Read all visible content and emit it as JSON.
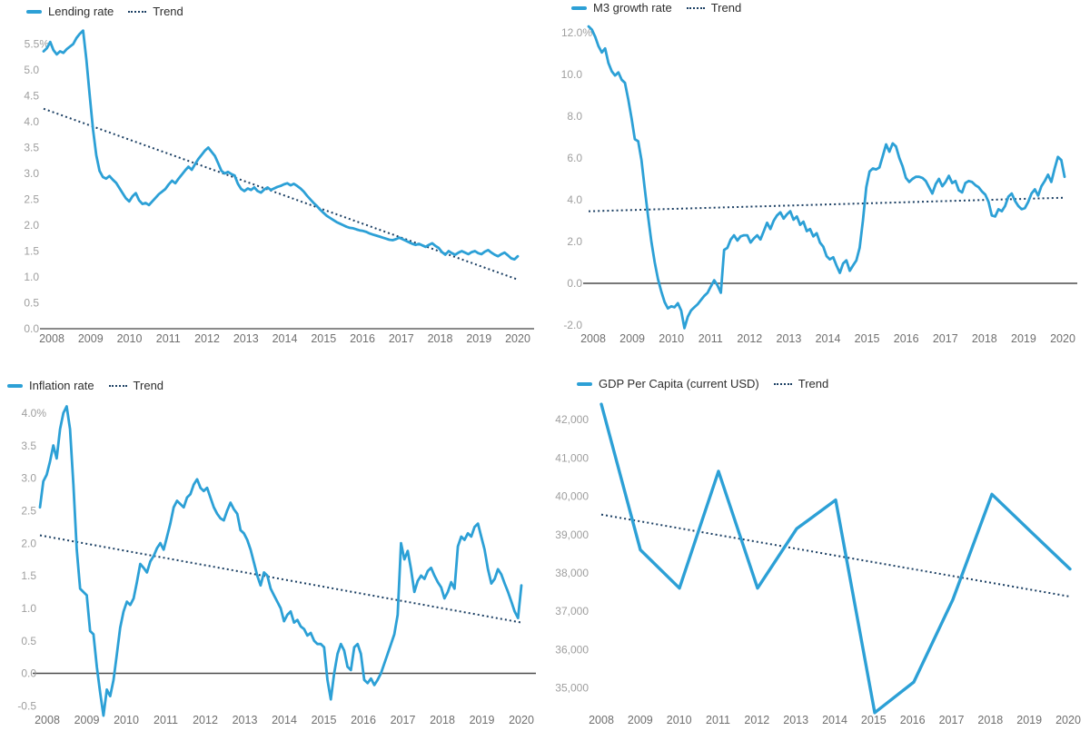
{
  "colors": {
    "series": "#2CA0D6",
    "trend": "#1B3F63",
    "axis_light": "#8a8a8a",
    "axis_dark": "#4c4c4c",
    "y_tick_label": "#9e9e9e",
    "x_tick_label": "#6f6f6f",
    "legend_text": "#2d2d2d",
    "background": "#ffffff"
  },
  "chart_data": [
    {
      "id": "lending-rate",
      "type": "line",
      "legend": {
        "series": "Lending rate",
        "trend": "Trend"
      },
      "ylabel": "",
      "xlabel": "",
      "ylim": [
        0.0,
        5.9
      ],
      "grid": false,
      "legend_position": "top-left",
      "y_ticks": [
        {
          "v": 5.5,
          "t": "5.5%"
        },
        {
          "v": 5.0,
          "t": "5.0"
        },
        {
          "v": 4.5,
          "t": "4.5"
        },
        {
          "v": 4.0,
          "t": "4.0"
        },
        {
          "v": 3.5,
          "t": "3.5"
        },
        {
          "v": 3.0,
          "t": "3.0"
        },
        {
          "v": 2.5,
          "t": "2.5"
        },
        {
          "v": 2.0,
          "t": "2.0"
        },
        {
          "v": 1.5,
          "t": "1.5"
        },
        {
          "v": 1.0,
          "t": "1.0"
        },
        {
          "v": 0.5,
          "t": "0.5"
        },
        {
          "v": 0.0,
          "t": "0.0"
        }
      ],
      "x_ticks": [
        "2008",
        "2009",
        "2010",
        "2011",
        "2012",
        "2013",
        "2014",
        "2015",
        "2016",
        "2017",
        "2018",
        "2019",
        "2020"
      ],
      "baseline": {
        "value": 0.0,
        "style": "light"
      },
      "trend": {
        "start": 4.25,
        "end": 0.95
      },
      "series": {
        "name": "Lending rate",
        "unit": "%",
        "start_year": 2008,
        "interval_months": 1,
        "values": [
          5.36,
          5.42,
          5.54,
          5.38,
          5.3,
          5.36,
          5.33,
          5.4,
          5.45,
          5.5,
          5.62,
          5.7,
          5.76,
          5.2,
          4.5,
          3.85,
          3.35,
          3.05,
          2.93,
          2.9,
          2.95,
          2.88,
          2.82,
          2.72,
          2.62,
          2.52,
          2.46,
          2.56,
          2.62,
          2.48,
          2.41,
          2.43,
          2.39,
          2.46,
          2.53,
          2.6,
          2.65,
          2.7,
          2.79,
          2.86,
          2.81,
          2.9,
          2.98,
          3.06,
          3.13,
          3.07,
          3.18,
          3.28,
          3.36,
          3.44,
          3.5,
          3.42,
          3.34,
          3.2,
          3.05,
          3.0,
          3.03,
          2.99,
          2.96,
          2.8,
          2.7,
          2.66,
          2.71,
          2.68,
          2.73,
          2.66,
          2.63,
          2.69,
          2.73,
          2.68,
          2.71,
          2.74,
          2.76,
          2.79,
          2.81,
          2.77,
          2.8,
          2.76,
          2.71,
          2.65,
          2.57,
          2.5,
          2.43,
          2.37,
          2.3,
          2.24,
          2.18,
          2.14,
          2.1,
          2.06,
          2.03,
          2.0,
          1.97,
          1.95,
          1.94,
          1.92,
          1.9,
          1.89,
          1.87,
          1.84,
          1.82,
          1.8,
          1.78,
          1.76,
          1.74,
          1.72,
          1.71,
          1.73,
          1.76,
          1.73,
          1.7,
          1.67,
          1.64,
          1.62,
          1.64,
          1.61,
          1.58,
          1.62,
          1.65,
          1.6,
          1.56,
          1.48,
          1.43,
          1.5,
          1.46,
          1.43,
          1.47,
          1.5,
          1.47,
          1.44,
          1.48,
          1.5,
          1.46,
          1.44,
          1.49,
          1.52,
          1.47,
          1.43,
          1.4,
          1.44,
          1.47,
          1.42,
          1.36,
          1.34,
          1.4
        ]
      }
    },
    {
      "id": "m3-growth-rate",
      "type": "line",
      "legend": {
        "series": "M3 growth rate",
        "trend": "Trend"
      },
      "ylabel": "",
      "xlabel": "",
      "ylim": [
        -2.4,
        12.6
      ],
      "grid": false,
      "legend_position": "top-left",
      "y_ticks": [
        {
          "v": 12.0,
          "t": "12.0%"
        },
        {
          "v": 10.0,
          "t": "10.0"
        },
        {
          "v": 8.0,
          "t": "8.0"
        },
        {
          "v": 6.0,
          "t": "6.0"
        },
        {
          "v": 4.0,
          "t": "4.0"
        },
        {
          "v": 2.0,
          "t": "2.0"
        },
        {
          "v": 0.0,
          "t": "0.0"
        },
        {
          "v": -2.0,
          "t": "-2.0"
        }
      ],
      "x_ticks": [
        "2008",
        "2009",
        "2010",
        "2011",
        "2012",
        "2013",
        "2014",
        "2015",
        "2016",
        "2017",
        "2018",
        "2019",
        "2020"
      ],
      "baseline": {
        "value": 0.0,
        "style": "dark"
      },
      "trend": {
        "start": 3.45,
        "end": 4.1
      },
      "series": {
        "name": "M3 growth rate",
        "unit": "%",
        "start_year": 2008,
        "interval_months": 1,
        "values": [
          12.3,
          12.15,
          11.8,
          11.35,
          11.05,
          11.25,
          10.55,
          10.15,
          9.95,
          10.1,
          9.75,
          9.6,
          8.8,
          7.9,
          6.9,
          6.8,
          5.9,
          4.5,
          3.2,
          2.0,
          1.0,
          0.2,
          -0.4,
          -0.9,
          -1.2,
          -1.1,
          -1.15,
          -0.95,
          -1.3,
          -2.15,
          -1.6,
          -1.3,
          -1.15,
          -1.0,
          -0.8,
          -0.6,
          -0.45,
          -0.15,
          0.15,
          -0.1,
          -0.45,
          1.6,
          1.7,
          2.1,
          2.3,
          2.05,
          2.25,
          2.3,
          2.3,
          1.95,
          2.15,
          2.3,
          2.1,
          2.5,
          2.9,
          2.6,
          3.0,
          3.25,
          3.4,
          3.1,
          3.3,
          3.45,
          3.05,
          3.2,
          2.8,
          2.95,
          2.5,
          2.6,
          2.25,
          2.4,
          1.95,
          1.75,
          1.3,
          1.15,
          1.25,
          0.85,
          0.5,
          0.95,
          1.1,
          0.6,
          0.85,
          1.1,
          1.7,
          3.0,
          4.6,
          5.35,
          5.5,
          5.45,
          5.55,
          6.1,
          6.65,
          6.3,
          6.7,
          6.55,
          6.0,
          5.6,
          5.05,
          4.85,
          5.0,
          5.1,
          5.1,
          5.05,
          4.9,
          4.6,
          4.3,
          4.75,
          5.0,
          4.65,
          4.85,
          5.15,
          4.8,
          4.9,
          4.45,
          4.35,
          4.8,
          4.9,
          4.85,
          4.7,
          4.6,
          4.4,
          4.25,
          3.9,
          3.25,
          3.2,
          3.55,
          3.45,
          3.7,
          4.15,
          4.3,
          3.95,
          3.7,
          3.55,
          3.6,
          3.9,
          4.3,
          4.5,
          4.2,
          4.65,
          4.9,
          5.2,
          4.85,
          5.5,
          6.05,
          5.9,
          5.1
        ]
      }
    },
    {
      "id": "inflation-rate",
      "type": "line",
      "legend": {
        "series": "Inflation rate",
        "trend": "Trend"
      },
      "ylabel": "",
      "xlabel": "",
      "ylim": [
        -0.75,
        4.3
      ],
      "grid": false,
      "legend_position": "top-left",
      "y_ticks": [
        {
          "v": 4.0,
          "t": "4.0%"
        },
        {
          "v": 3.5,
          "t": "3.5"
        },
        {
          "v": 3.0,
          "t": "3.0"
        },
        {
          "v": 2.5,
          "t": "2.5"
        },
        {
          "v": 2.0,
          "t": "2.0"
        },
        {
          "v": 1.5,
          "t": "1.5"
        },
        {
          "v": 1.0,
          "t": "1.0"
        },
        {
          "v": 0.5,
          "t": "0.5"
        },
        {
          "v": 0.0,
          "t": "0.0"
        },
        {
          "v": -0.5,
          "t": "-0.5"
        }
      ],
      "x_ticks": [
        "2008",
        "2009",
        "2010",
        "2011",
        "2012",
        "2013",
        "2014",
        "2015",
        "2016",
        "2017",
        "2018",
        "2019",
        "2020"
      ],
      "baseline": {
        "value": 0.0,
        "style": "dark"
      },
      "trend": {
        "start": 2.12,
        "end": 0.78
      },
      "series": {
        "name": "Inflation rate",
        "unit": "%",
        "start_year": 2008,
        "interval_months": 1,
        "values": [
          2.55,
          2.95,
          3.05,
          3.25,
          3.5,
          3.3,
          3.75,
          4.0,
          4.1,
          3.75,
          2.9,
          1.9,
          1.3,
          1.25,
          1.2,
          0.65,
          0.6,
          0.1,
          -0.3,
          -0.65,
          -0.25,
          -0.35,
          -0.1,
          0.3,
          0.7,
          0.95,
          1.1,
          1.05,
          1.15,
          1.4,
          1.68,
          1.62,
          1.55,
          1.72,
          1.8,
          1.92,
          2.0,
          1.9,
          2.1,
          2.3,
          2.55,
          2.65,
          2.6,
          2.55,
          2.7,
          2.75,
          2.9,
          2.98,
          2.85,
          2.8,
          2.85,
          2.7,
          2.55,
          2.45,
          2.38,
          2.35,
          2.5,
          2.62,
          2.52,
          2.45,
          2.2,
          2.15,
          2.05,
          1.9,
          1.7,
          1.5,
          1.35,
          1.55,
          1.5,
          1.3,
          1.2,
          1.1,
          1.0,
          0.8,
          0.9,
          0.95,
          0.78,
          0.82,
          0.72,
          0.68,
          0.58,
          0.62,
          0.5,
          0.45,
          0.45,
          0.4,
          -0.1,
          -0.4,
          0.0,
          0.3,
          0.45,
          0.35,
          0.1,
          0.05,
          0.4,
          0.45,
          0.3,
          -0.1,
          -0.15,
          -0.08,
          -0.18,
          -0.1,
          0.0,
          0.15,
          0.3,
          0.45,
          0.6,
          0.9,
          2.0,
          1.75,
          1.88,
          1.6,
          1.25,
          1.42,
          1.5,
          1.45,
          1.57,
          1.62,
          1.5,
          1.4,
          1.32,
          1.15,
          1.25,
          1.4,
          1.3,
          1.95,
          2.1,
          2.05,
          2.15,
          2.1,
          2.25,
          2.3,
          2.1,
          1.9,
          1.6,
          1.38,
          1.45,
          1.6,
          1.52,
          1.38,
          1.25,
          1.1,
          0.95,
          0.85,
          1.35
        ]
      }
    },
    {
      "id": "gdp-per-capita",
      "type": "line",
      "legend": {
        "series": "GDP Per Capita (current USD)",
        "trend": "Trend"
      },
      "ylabel": "",
      "xlabel": "",
      "ylim": [
        34200,
        42600
      ],
      "grid": false,
      "legend_position": "top-left",
      "y_ticks": [
        {
          "v": 42000,
          "t": "42,000"
        },
        {
          "v": 41000,
          "t": "41,000"
        },
        {
          "v": 40000,
          "t": "40,000"
        },
        {
          "v": 39000,
          "t": "39,000"
        },
        {
          "v": 38000,
          "t": "38,000"
        },
        {
          "v": 37000,
          "t": "37,000"
        },
        {
          "v": 36000,
          "t": "36,000"
        },
        {
          "v": 35000,
          "t": "35,000"
        }
      ],
      "x_ticks": [
        "2008",
        "2009",
        "2010",
        "2011",
        "2012",
        "2013",
        "2014",
        "2015",
        "2016",
        "2017",
        "2018",
        "2019",
        "2020"
      ],
      "baseline": null,
      "trend": {
        "start": 39520,
        "end": 37380
      },
      "series": {
        "name": "GDP Per Capita (current USD)",
        "unit": "USD",
        "start_year": 2008,
        "interval_months": 12,
        "values": [
          42400,
          38600,
          37600,
          40650,
          37600,
          39150,
          39900,
          34350,
          35150,
          37300,
          40050,
          39070,
          38100
        ]
      }
    }
  ]
}
